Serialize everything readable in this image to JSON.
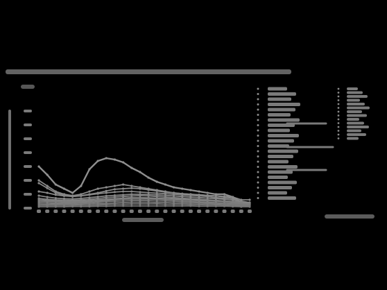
{
  "chart_data": {
    "type": "line",
    "title": "",
    "xlabel": "",
    "ylabel": "",
    "x_count": 26,
    "ylim": [
      0,
      400
    ],
    "y_ticks": [
      0,
      50,
      100,
      150,
      200,
      250,
      300,
      350
    ],
    "grid": false,
    "legend_placement": "right",
    "series": [
      {
        "values": [
          150,
          120,
          85,
          70,
          55,
          80,
          140,
          170,
          180,
          175,
          165,
          145,
          130,
          110,
          95,
          85,
          75,
          70,
          65,
          60,
          55,
          50,
          50,
          40,
          20,
          15
        ],
        "color": "#8f8f8f"
      },
      {
        "values": [
          100,
          80,
          60,
          50,
          45,
          50,
          60,
          70,
          75,
          80,
          85,
          80,
          75,
          70,
          65,
          60,
          55,
          52,
          50,
          48,
          46,
          44,
          42,
          40,
          30,
          30
        ],
        "color": "#8a8a8a"
      },
      {
        "values": [
          60,
          55,
          48,
          44,
          42,
          45,
          50,
          55,
          62,
          68,
          70,
          72,
          70,
          66,
          62,
          58,
          55,
          52,
          50,
          48,
          46,
          44,
          40,
          35,
          25,
          20
        ],
        "color": "#8a8a8a"
      },
      {
        "values": [
          90,
          72,
          55,
          46,
          42,
          44,
          48,
          52,
          55,
          58,
          60,
          60,
          58,
          56,
          54,
          52,
          50,
          48,
          46,
          44,
          42,
          38,
          35,
          30,
          22,
          18
        ],
        "color": "#868686"
      },
      {
        "values": [
          45,
          40,
          36,
          34,
          33,
          35,
          38,
          41,
          44,
          46,
          48,
          50,
          50,
          49,
          48,
          46,
          44,
          42,
          40,
          38,
          36,
          34,
          32,
          30,
          25,
          20
        ],
        "color": "#868686"
      },
      {
        "values": [
          35,
          32,
          30,
          29,
          28,
          30,
          32,
          35,
          38,
          40,
          42,
          44,
          45,
          44,
          42,
          40,
          38,
          36,
          34,
          32,
          30,
          28,
          26,
          24,
          20,
          15
        ],
        "color": "#828282"
      },
      {
        "values": [
          30,
          28,
          26,
          25,
          25,
          26,
          28,
          30,
          32,
          34,
          36,
          38,
          38,
          37,
          36,
          35,
          34,
          32,
          30,
          29,
          28,
          27,
          26,
          24,
          20,
          16
        ],
        "color": "#828282"
      },
      {
        "values": [
          25,
          24,
          23,
          22,
          22,
          23,
          24,
          26,
          28,
          30,
          32,
          33,
          33,
          33,
          32,
          31,
          30,
          29,
          28,
          27,
          26,
          25,
          24,
          22,
          18,
          14
        ],
        "color": "#7e7e7e"
      },
      {
        "values": [
          20,
          19,
          18,
          18,
          18,
          19,
          20,
          22,
          24,
          25,
          26,
          27,
          27,
          27,
          26,
          26,
          25,
          24,
          23,
          22,
          21,
          20,
          19,
          18,
          15,
          12
        ],
        "color": "#7e7e7e"
      },
      {
        "values": [
          15,
          14,
          14,
          14,
          14,
          15,
          16,
          17,
          18,
          19,
          20,
          21,
          21,
          21,
          20,
          20,
          19,
          19,
          18,
          18,
          17,
          16,
          15,
          14,
          12,
          10
        ],
        "color": "#7a7a7a"
      },
      {
        "values": [
          10,
          10,
          10,
          10,
          10,
          11,
          11,
          12,
          13,
          14,
          14,
          15,
          15,
          15,
          15,
          14,
          14,
          14,
          13,
          13,
          12,
          12,
          11,
          10,
          9,
          8
        ],
        "color": "#7a7a7a"
      },
      {
        "values": [
          5,
          5,
          5,
          5,
          6,
          6,
          6,
          7,
          7,
          8,
          8,
          8,
          8,
          8,
          8,
          8,
          8,
          8,
          8,
          7,
          7,
          7,
          7,
          6,
          5,
          5
        ],
        "color": "#767676"
      }
    ],
    "legend_rows_left": 22,
    "legend_rows_right": 14
  }
}
